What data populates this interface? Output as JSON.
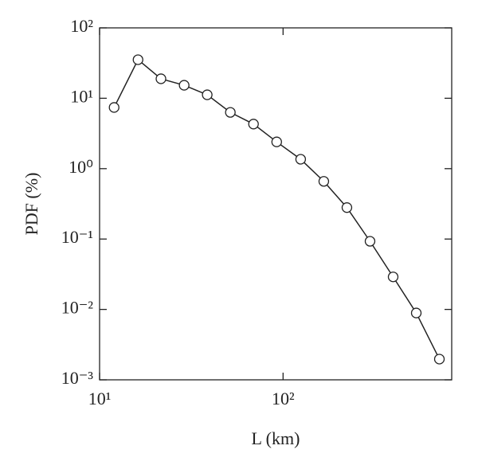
{
  "chart_data": {
    "type": "line",
    "xlabel": "L (km)",
    "ylabel": "PDF (%)",
    "x": [
      12.0,
      16.2,
      21.6,
      28.9,
      38.6,
      51.6,
      69.0,
      92.3,
      124.7,
      166.7,
      222.8,
      297.8,
      398,
      532,
      711
    ],
    "series": [
      {
        "color": "#222222",
        "values": [
          7.4,
          35.3,
          18.9,
          15.3,
          11.2,
          6.3,
          4.3,
          2.4,
          1.36,
          0.66,
          0.28,
          0.093,
          0.029,
          0.0089,
          0.00197
        ]
      }
    ],
    "xscale": "log",
    "yscale": "log",
    "xlim": [
      10,
      830
    ],
    "ylim": [
      0.001,
      100
    ],
    "xticks": [
      {
        "value": 10,
        "label": "10¹"
      },
      {
        "value": 100,
        "label": "10²"
      }
    ],
    "yticks": [
      {
        "value": 0.001,
        "label": "10⁻³"
      },
      {
        "value": 0.01,
        "label": "10⁻²"
      },
      {
        "value": 0.1,
        "label": "10⁻¹"
      },
      {
        "value": 1,
        "label": "10⁰"
      },
      {
        "value": 10,
        "label": "10¹"
      },
      {
        "value": 100,
        "label": "10²"
      }
    ]
  }
}
